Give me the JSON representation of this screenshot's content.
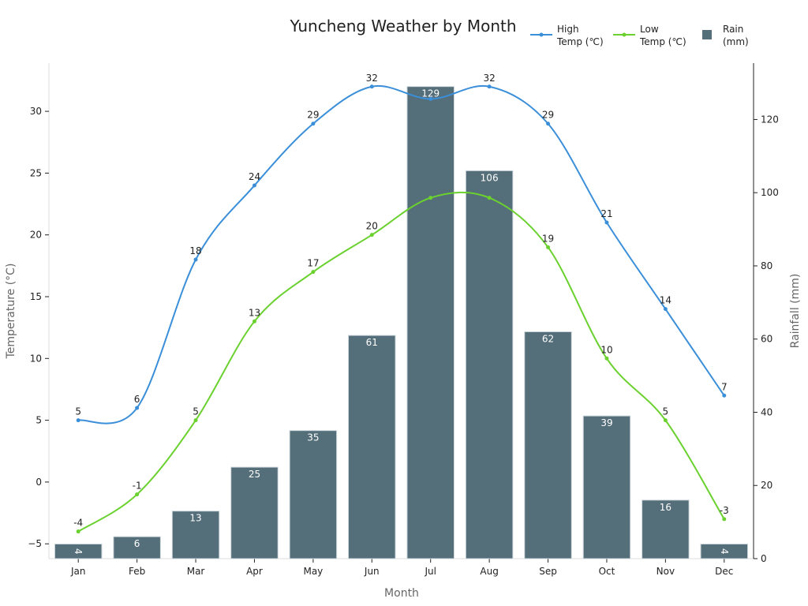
{
  "chart_data": {
    "type": "bar",
    "title": "Yuncheng Weather by Month",
    "xlabel": "Month",
    "ylabel": "Temperature (°C)",
    "y2label": "Rainfall (mm)",
    "categories": [
      "Jan",
      "Feb",
      "Mar",
      "Apr",
      "May",
      "Jun",
      "Jul",
      "Aug",
      "Sep",
      "Oct",
      "Nov",
      "Dec"
    ],
    "ylim": [
      -6.2,
      33.9
    ],
    "y2lim": [
      0,
      135.4
    ],
    "yticks": [
      -5,
      0,
      5,
      10,
      15,
      20,
      25,
      30
    ],
    "y2ticks": [
      0,
      20,
      40,
      60,
      80,
      100,
      120
    ],
    "legend_position": "top-right",
    "series": [
      {
        "name": "High Temp (℃)",
        "legend_lines": [
          "High",
          "Temp (℃)"
        ],
        "kind": "line",
        "axis": "left",
        "color": "#3b8fd9",
        "values": [
          5,
          6,
          18,
          24,
          29,
          32,
          31,
          32,
          29,
          21,
          14,
          7
        ],
        "labels": [
          "5",
          "6",
          "18",
          "24",
          "29",
          "32",
          "",
          "32",
          "29",
          "21",
          "14",
          "7"
        ]
      },
      {
        "name": "Low Temp (℃)",
        "legend_lines": [
          "Low",
          "Temp (℃)"
        ],
        "kind": "line",
        "axis": "left",
        "color": "#6ad12f",
        "values": [
          -4,
          -1,
          5,
          13,
          17,
          20,
          23,
          23,
          19,
          10,
          5,
          -3
        ],
        "labels": [
          "-4",
          "-1",
          "5",
          "13",
          "17",
          "20",
          "",
          "",
          "19",
          "10",
          "5",
          "-3"
        ]
      },
      {
        "name": "Rain (mm)",
        "legend_lines": [
          "Rain",
          "(mm)"
        ],
        "kind": "bar",
        "axis": "right",
        "color": "#546e7a",
        "values": [
          4,
          6,
          13,
          25,
          35,
          61,
          129,
          106,
          62,
          39,
          16,
          4
        ],
        "labels": [
          "4",
          "6",
          "13",
          "25",
          "35",
          "61",
          "129",
          "106",
          "62",
          "39",
          "16",
          "4"
        ]
      }
    ]
  }
}
